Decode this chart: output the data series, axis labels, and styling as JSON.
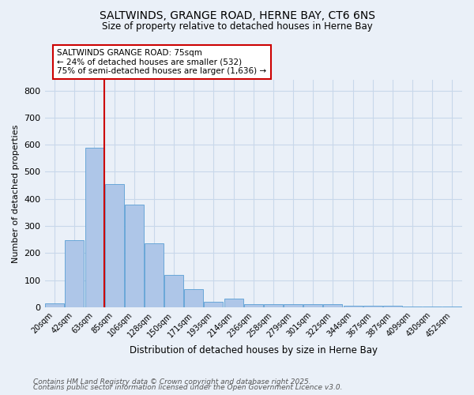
{
  "title": "SALTWINDS, GRANGE ROAD, HERNE BAY, CT6 6NS",
  "subtitle": "Size of property relative to detached houses in Herne Bay",
  "xlabel": "Distribution of detached houses by size in Herne Bay",
  "ylabel": "Number of detached properties",
  "bar_labels": [
    "20sqm",
    "42sqm",
    "63sqm",
    "85sqm",
    "106sqm",
    "128sqm",
    "150sqm",
    "171sqm",
    "193sqm",
    "214sqm",
    "236sqm",
    "258sqm",
    "279sqm",
    "301sqm",
    "322sqm",
    "344sqm",
    "367sqm",
    "387sqm",
    "409sqm",
    "430sqm",
    "452sqm"
  ],
  "bar_values": [
    15,
    248,
    590,
    455,
    378,
    235,
    120,
    68,
    20,
    32,
    10,
    12,
    10,
    10,
    10,
    5,
    5,
    5,
    3,
    2,
    3
  ],
  "bar_color": "#aec6e8",
  "bar_edge_color": "#5a9fd4",
  "grid_color": "#c8d8ea",
  "background_color": "#eaf0f8",
  "vline_x_index": 3,
  "vline_color": "#cc0000",
  "annotation_text": "SALTWINDS GRANGE ROAD: 75sqm\n← 24% of detached houses are smaller (532)\n75% of semi-detached houses are larger (1,636) →",
  "annotation_box_color": "#ffffff",
  "annotation_box_edge": "#cc0000",
  "ylim": [
    0,
    840
  ],
  "yticks": [
    0,
    100,
    200,
    300,
    400,
    500,
    600,
    700,
    800
  ],
  "footnote1": "Contains HM Land Registry data © Crown copyright and database right 2025.",
  "footnote2": "Contains public sector information licensed under the Open Government Licence v3.0."
}
